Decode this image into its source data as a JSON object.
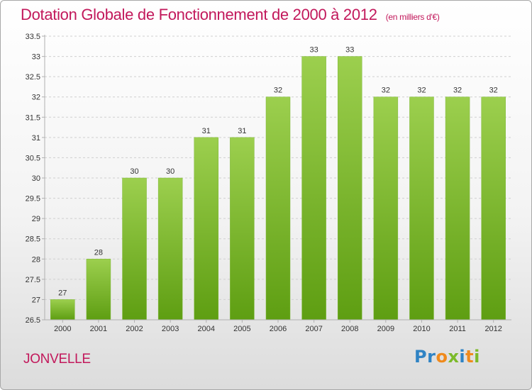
{
  "chart_data": {
    "type": "bar",
    "title": "Dotation Globale de Fonctionnement de 2000 à 2012",
    "unit_label": "(en milliers d'€)",
    "categories": [
      "2000",
      "2001",
      "2002",
      "2003",
      "2004",
      "2005",
      "2006",
      "2007",
      "2008",
      "2009",
      "2010",
      "2011",
      "2012"
    ],
    "values": [
      27,
      28,
      30,
      30,
      31,
      31,
      32,
      33,
      33,
      32,
      32,
      32,
      32
    ],
    "value_labels": [
      "27",
      "28",
      "30",
      "30",
      "31",
      "31",
      "32",
      "33",
      "33",
      "32",
      "32",
      "32",
      "32"
    ],
    "ylim": [
      26.5,
      33.5
    ],
    "yticks": [
      "26.5",
      "27",
      "27.5",
      "28",
      "28.5",
      "29",
      "29.5",
      "30",
      "30.5",
      "31",
      "31.5",
      "32",
      "32.5",
      "33",
      "33.5"
    ],
    "xlabel": "",
    "ylabel": "",
    "grid": true,
    "bar_color_top": "#9ccf4e",
    "bar_color_bottom": "#5e9e12"
  },
  "footer": {
    "commune": "JONVELLE",
    "brand": {
      "letters": [
        "P",
        "r",
        "o",
        "x",
        "i",
        "t",
        "i"
      ],
      "colors": [
        "#2f83c4",
        "#2f83c4",
        "#f08a1c",
        "#7cba2a",
        "#2f83c4",
        "#f08a1c",
        "#7cba2a"
      ]
    }
  },
  "colors": {
    "accent": "#c2185b"
  }
}
